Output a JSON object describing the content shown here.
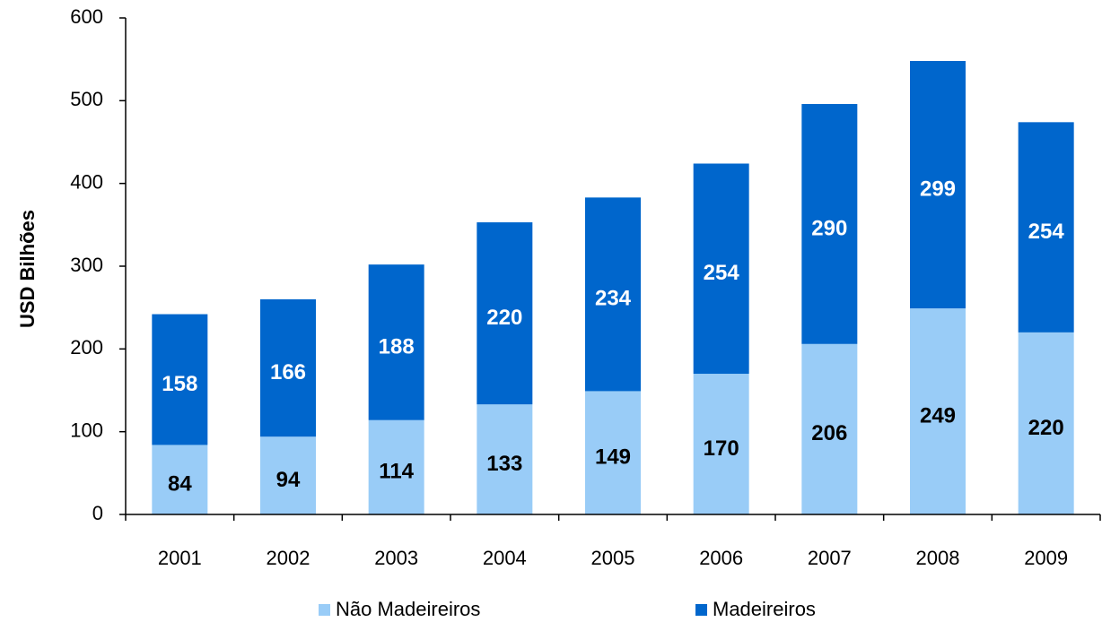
{
  "chart_data": {
    "type": "stacked_bar",
    "y_axis_label": "USD Bilhões",
    "categories": [
      "2001",
      "2002",
      "2003",
      "2004",
      "2005",
      "2006",
      "2007",
      "2008",
      "2009"
    ],
    "series": [
      {
        "name": "Não Madeireiros",
        "color": "#99ccf7",
        "label_color": "#000000",
        "values": [
          84,
          94,
          114,
          133,
          149,
          170,
          206,
          249,
          220
        ]
      },
      {
        "name": "Madeireiros",
        "color": "#0066cc",
        "label_color": "#ffffff",
        "values": [
          158,
          166,
          188,
          220,
          234,
          254,
          290,
          299,
          254
        ]
      }
    ],
    "ylim": [
      0,
      600
    ],
    "yticks": [
      0,
      100,
      200,
      300,
      400,
      500,
      600
    ],
    "legend": "bottom"
  }
}
